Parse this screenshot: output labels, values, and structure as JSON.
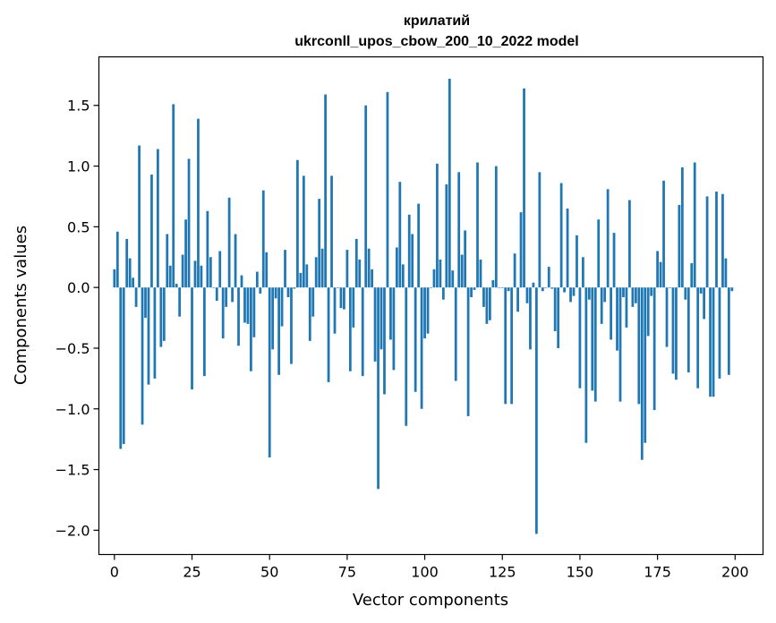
{
  "chart_data": {
    "type": "bar",
    "title": "крилатий",
    "subtitle": "ukrconll_upos_cbow_200_10_2022 model",
    "xlabel": "Vector components",
    "ylabel": "Components values",
    "xlim": [
      -5,
      209
    ],
    "ylim": [
      -2.2,
      1.9
    ],
    "x_ticks": [
      0,
      25,
      50,
      75,
      100,
      125,
      150,
      175,
      200
    ],
    "x_tick_labels": [
      "0",
      "25",
      "50",
      "75",
      "100",
      "125",
      "150",
      "175",
      "200"
    ],
    "y_ticks": [
      -2.0,
      -1.5,
      -1.0,
      -0.5,
      0.0,
      0.5,
      1.0,
      1.5
    ],
    "y_tick_labels": [
      "−2.0",
      "−1.5",
      "−1.0",
      "−0.5",
      "0.0",
      "0.5",
      "1.0",
      "1.5"
    ],
    "grid": false,
    "bar_color": "#1f77b4",
    "x": [
      0,
      1,
      2,
      3,
      4,
      5,
      6,
      7,
      8,
      9,
      10,
      11,
      12,
      13,
      14,
      15,
      16,
      17,
      18,
      19,
      20,
      21,
      22,
      23,
      24,
      25,
      26,
      27,
      28,
      29,
      30,
      31,
      32,
      33,
      34,
      35,
      36,
      37,
      38,
      39,
      40,
      41,
      42,
      43,
      44,
      45,
      46,
      47,
      48,
      49,
      50,
      51,
      52,
      53,
      54,
      55,
      56,
      57,
      58,
      59,
      60,
      61,
      62,
      63,
      64,
      65,
      66,
      67,
      68,
      69,
      70,
      71,
      72,
      73,
      74,
      75,
      76,
      77,
      78,
      79,
      80,
      81,
      82,
      83,
      84,
      85,
      86,
      87,
      88,
      89,
      90,
      91,
      92,
      93,
      94,
      95,
      96,
      97,
      98,
      99,
      100,
      101,
      102,
      103,
      104,
      105,
      106,
      107,
      108,
      109,
      110,
      111,
      112,
      113,
      114,
      115,
      116,
      117,
      118,
      119,
      120,
      121,
      122,
      123,
      124,
      125,
      126,
      127,
      128,
      129,
      130,
      131,
      132,
      133,
      134,
      135,
      136,
      137,
      138,
      139,
      140,
      141,
      142,
      143,
      144,
      145,
      146,
      147,
      148,
      149,
      150,
      151,
      152,
      153,
      154,
      155,
      156,
      157,
      158,
      159,
      160,
      161,
      162,
      163,
      164,
      165,
      166,
      167,
      168,
      169,
      170,
      171,
      172,
      173,
      174,
      175,
      176,
      177,
      178,
      179,
      180,
      181,
      182,
      183,
      184,
      185,
      186,
      187,
      188,
      189,
      190,
      191,
      192,
      193,
      194,
      195,
      196,
      197,
      198,
      199
    ],
    "values": [
      0.15,
      0.46,
      -1.33,
      -1.29,
      0.4,
      0.24,
      0.08,
      -0.16,
      1.17,
      -1.13,
      -0.25,
      -0.8,
      0.93,
      -0.75,
      1.14,
      -0.49,
      -0.44,
      0.44,
      0.18,
      1.51,
      0.03,
      -0.24,
      0.27,
      0.56,
      1.06,
      -0.84,
      0.22,
      1.39,
      0.18,
      -0.73,
      0.63,
      0.25,
      0.0,
      -0.11,
      0.3,
      -0.42,
      -0.16,
      0.74,
      -0.12,
      0.44,
      -0.48,
      0.1,
      -0.29,
      -0.3,
      -0.69,
      -0.41,
      0.13,
      -0.05,
      0.8,
      0.29,
      -1.4,
      -0.51,
      -0.09,
      -0.72,
      -0.32,
      0.31,
      -0.08,
      -0.63,
      -0.01,
      1.05,
      0.12,
      0.92,
      0.19,
      -0.44,
      -0.24,
      0.25,
      0.73,
      0.32,
      1.59,
      -0.78,
      0.92,
      -0.38,
      0.0,
      -0.17,
      -0.18,
      0.31,
      -0.69,
      -0.33,
      0.4,
      0.23,
      -0.73,
      1.5,
      0.32,
      0.15,
      -0.61,
      -1.66,
      -0.51,
      -0.88,
      1.61,
      -0.43,
      -0.68,
      0.33,
      0.87,
      0.19,
      -1.14,
      0.6,
      0.44,
      -0.86,
      0.69,
      -1.0,
      -0.42,
      -0.38,
      0.0,
      0.15,
      1.02,
      0.23,
      -0.1,
      0.85,
      1.72,
      0.14,
      -0.77,
      0.95,
      0.27,
      0.47,
      -1.06,
      -0.08,
      -0.02,
      1.03,
      0.23,
      -0.16,
      -0.3,
      -0.27,
      0.06,
      1.0,
      0.0,
      0.0,
      -0.96,
      -0.03,
      -0.96,
      0.28,
      -0.2,
      0.62,
      1.64,
      -0.13,
      -0.51,
      0.04,
      -2.03,
      0.95,
      -0.03,
      0.0,
      0.17,
      -0.01,
      -0.36,
      -0.5,
      0.86,
      -0.04,
      0.65,
      -0.12,
      -0.07,
      0.43,
      -0.83,
      0.25,
      -1.28,
      -0.1,
      -0.85,
      -0.94,
      0.56,
      -0.3,
      -0.12,
      0.81,
      -0.43,
      0.45,
      -0.52,
      -0.94,
      -0.08,
      -0.33,
      0.72,
      -0.16,
      -0.13,
      -0.96,
      -1.42,
      -1.28,
      -0.4,
      -0.07,
      -1.01,
      0.3,
      0.21,
      0.88,
      -0.49,
      0.0,
      -0.71,
      -0.76,
      0.68,
      0.99,
      -0.1,
      -0.7,
      0.2,
      1.03,
      -0.83,
      -0.05,
      -0.26,
      0.75,
      -0.9,
      -0.9,
      0.79,
      -0.75,
      0.77,
      0.24,
      -0.72,
      -0.03
    ]
  }
}
